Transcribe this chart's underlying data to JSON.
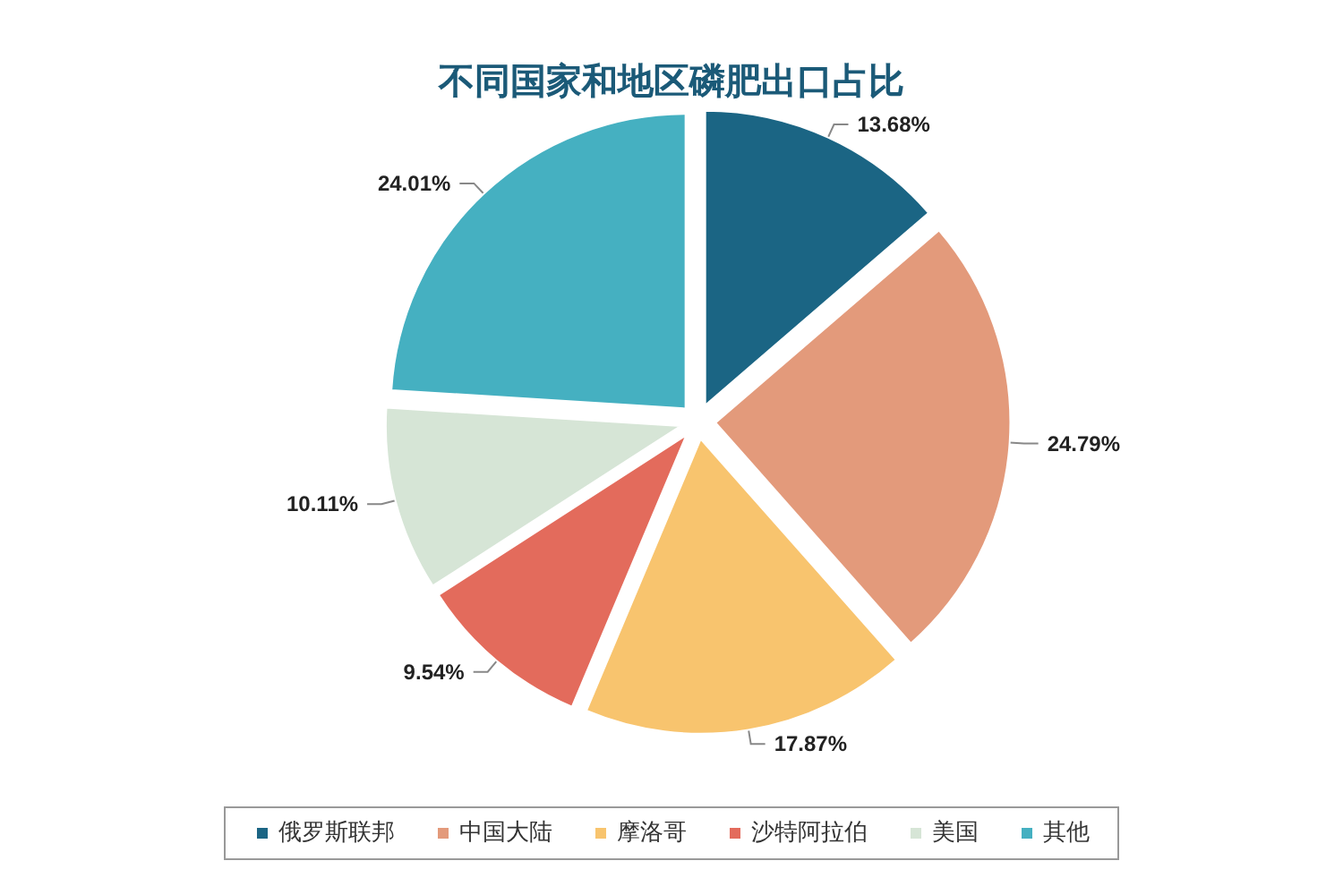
{
  "chart_data": {
    "type": "pie",
    "title": "不同国家和地区磷肥出口占比",
    "categories": [
      "俄罗斯联邦",
      "中国大陆",
      "摩洛哥",
      "沙特阿拉伯",
      "美国",
      "其他"
    ],
    "values": [
      13.68,
      24.79,
      17.87,
      9.54,
      10.11,
      24.01
    ],
    "colors": [
      "#1b6584",
      "#e39a7b",
      "#f8c46e",
      "#e36b5c",
      "#d6e5d6",
      "#45b0c1"
    ],
    "value_labels": [
      "13.68%",
      "24.79%",
      "17.87%",
      "9.54%",
      "10.11%",
      "24.01%"
    ],
    "legend": "bottom"
  }
}
